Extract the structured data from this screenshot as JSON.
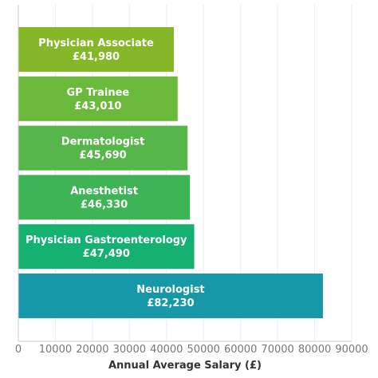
{
  "chart_data": {
    "type": "bar",
    "orientation": "horizontal",
    "title": "",
    "xlabel": "Annual Average Salary (£)",
    "ylabel": "",
    "xlim": [
      0,
      90000
    ],
    "xticks": [
      0,
      10000,
      20000,
      30000,
      40000,
      50000,
      60000,
      70000,
      80000,
      90000
    ],
    "grid": true,
    "legend": "none",
    "categories": [
      "Physician Associate",
      "GP Trainee",
      "Dermatologist",
      "Anesthetist",
      "Physician Gastroenterology",
      "Neurologist"
    ],
    "values": [
      41980,
      43010,
      45690,
      46330,
      47490,
      82230
    ],
    "value_labels": [
      "£41,980",
      "£43,010",
      "£45,690",
      "£46,330",
      "£47,490",
      "£82,230"
    ],
    "colors": [
      "#85b728",
      "#6bb93a",
      "#57b64a",
      "#3fb456",
      "#15b170",
      "#1698a8"
    ]
  }
}
